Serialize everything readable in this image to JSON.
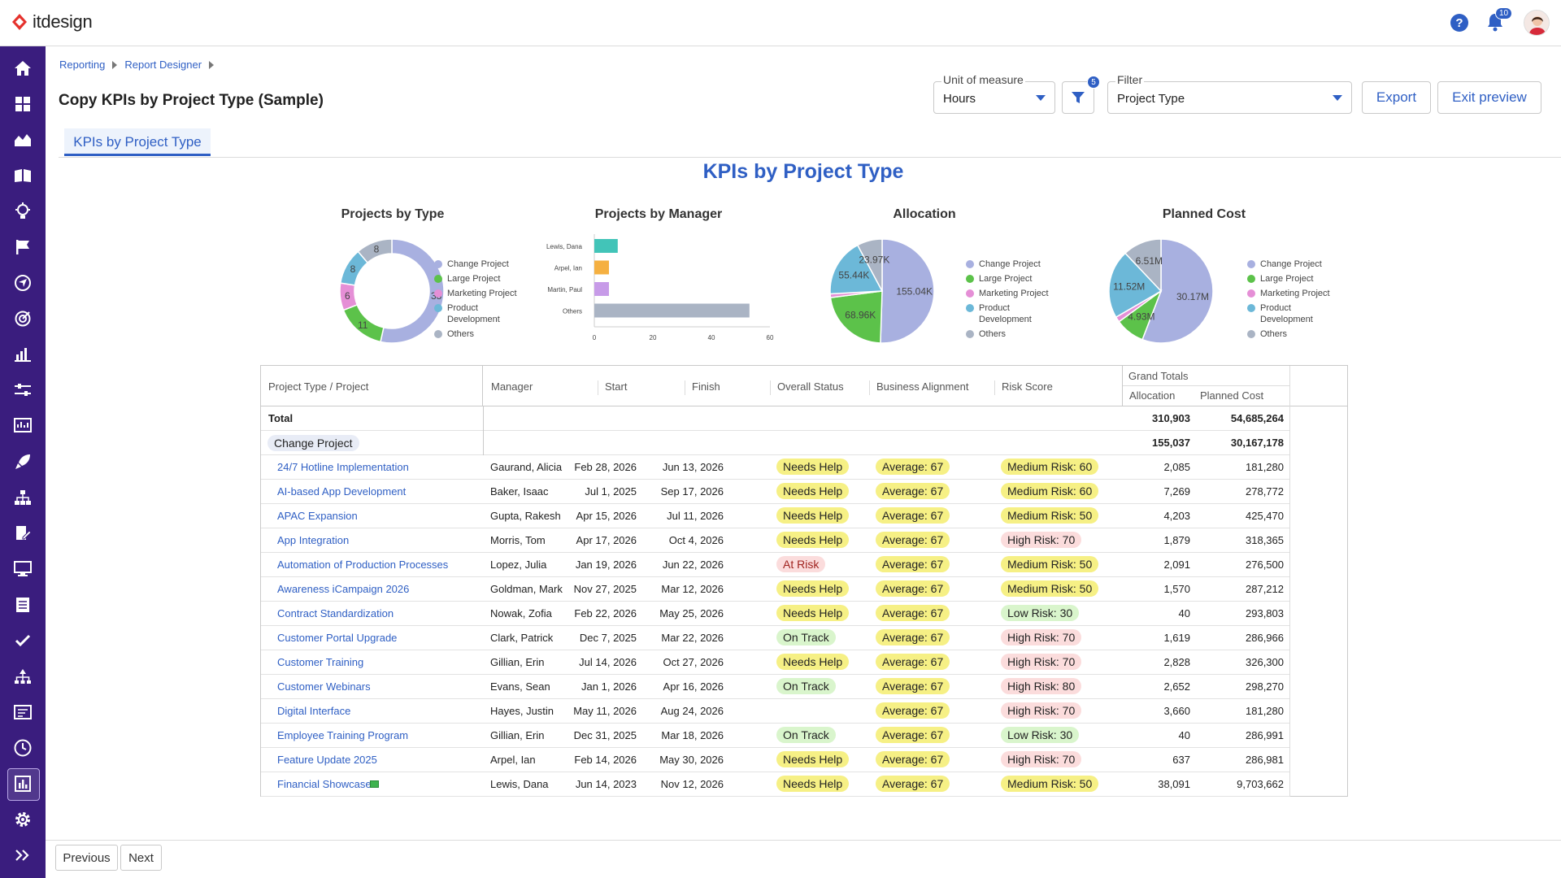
{
  "app": {
    "logo_text": "itdesign",
    "notification_count": "10"
  },
  "breadcrumb": [
    "Reporting",
    "Report Designer"
  ],
  "page_title": "Copy KPIs by Project Type (Sample)",
  "controls": {
    "unit_label": "Unit of measure",
    "unit_value": "Hours",
    "filter_count": "5",
    "filter_label": "Filter",
    "filter_value": "Project Type",
    "export": "Export",
    "exit_preview": "Exit preview"
  },
  "tab": "KPIs by Project Type",
  "report_title": "KPIs by Project Type",
  "legend_items": [
    {
      "label": "Change Project",
      "color": "#a8b0e0"
    },
    {
      "label": "Large Project",
      "color": "#5cc24a"
    },
    {
      "label": "Marketing Project",
      "color": "#e58fd6"
    },
    {
      "label": "Product Development",
      "color": "#6cb8d8"
    },
    {
      "label": "Others",
      "color": "#aab4c4"
    }
  ],
  "chart_data": [
    {
      "type": "pie",
      "title": "Projects by Type",
      "donut": true,
      "categories": [
        "Change Project",
        "Large Project",
        "Marketing Project",
        "Product Development",
        "Others"
      ],
      "values": [
        38,
        11,
        6,
        8,
        8
      ],
      "labels": [
        "38",
        "11",
        "6",
        "8",
        "8"
      ]
    },
    {
      "type": "bar",
      "title": "Projects by Manager",
      "orientation": "horizontal",
      "categories": [
        "Lewis, Dana",
        "Arpel, Ian",
        "Martin, Paul",
        "Others"
      ],
      "values": [
        8,
        5,
        5,
        53
      ],
      "colors": [
        "#42c4b8",
        "#f5b041",
        "#c79be8",
        "#aab4c4"
      ],
      "xticks": [
        "0",
        "20",
        "40",
        "60"
      ],
      "xlim": [
        0,
        60
      ]
    },
    {
      "type": "pie",
      "title": "Allocation",
      "categories": [
        "Change Project",
        "Large Project",
        "Marketing Project",
        "Product Development",
        "Others"
      ],
      "values": [
        155.04,
        68.96,
        3.5,
        55.44,
        23.97
      ],
      "labels": [
        "155.04K",
        "68.96K",
        "",
        "55.44K",
        "23.97K"
      ]
    },
    {
      "type": "pie",
      "title": "Planned Cost",
      "categories": [
        "Change Project",
        "Large Project",
        "Marketing Project",
        "Product Development",
        "Others"
      ],
      "values": [
        30.17,
        4.93,
        0.9,
        11.52,
        6.51
      ],
      "labels": [
        "30.17M",
        "4.93M",
        "",
        "11.52M",
        "6.51M"
      ]
    }
  ],
  "grid": {
    "headers": {
      "project": "Project Type / Project",
      "manager": "Manager",
      "start": "Start",
      "finish": "Finish",
      "status": "Overall Status",
      "alignment": "Business Alignment",
      "risk": "Risk Score",
      "grand_totals": "Grand Totals",
      "allocation": "Allocation",
      "planned_cost": "Planned Cost"
    },
    "total": {
      "label": "Total",
      "allocation": "310,903",
      "planned_cost": "54,685,264"
    },
    "group": {
      "label": "Change Project",
      "allocation": "155,037",
      "planned_cost": "30,167,178"
    },
    "rows": [
      {
        "project": "24/7 Hotline Implementation",
        "manager": "Gaurand, Alicia",
        "start": "Feb 28, 2026",
        "finish": "Jun 13, 2026",
        "status": "Needs Help",
        "status_kind": "help",
        "alignment": "Average: 67",
        "risk": "Medium Risk: 60",
        "risk_kind": "med",
        "allocation": "2,085",
        "planned_cost": "181,280"
      },
      {
        "project": "AI-based App Development",
        "manager": "Baker, Isaac",
        "start": "Jul 1, 2025",
        "finish": "Sep 17, 2026",
        "status": "Needs Help",
        "status_kind": "help",
        "alignment": "Average: 67",
        "risk": "Medium Risk: 60",
        "risk_kind": "med",
        "allocation": "7,269",
        "planned_cost": "278,772"
      },
      {
        "project": "APAC Expansion",
        "manager": "Gupta, Rakesh",
        "start": "Apr 15, 2026",
        "finish": "Jul 11, 2026",
        "status": "Needs Help",
        "status_kind": "help",
        "alignment": "Average: 67",
        "risk": "Medium Risk: 50",
        "risk_kind": "med",
        "allocation": "4,203",
        "planned_cost": "425,470"
      },
      {
        "project": "App Integration",
        "manager": "Morris, Tom",
        "start": "Apr 17, 2026",
        "finish": "Oct 4, 2026",
        "status": "Needs Help",
        "status_kind": "help",
        "alignment": "Average: 67",
        "risk": "High Risk: 70",
        "risk_kind": "high",
        "allocation": "1,879",
        "planned_cost": "318,365"
      },
      {
        "project": "Automation of Production Processes",
        "manager": "Lopez, Julia",
        "start": "Jan 19, 2026",
        "finish": "Jun 22, 2026",
        "status": "At Risk",
        "status_kind": "risk",
        "alignment": "Average: 67",
        "risk": "Medium Risk: 50",
        "risk_kind": "med",
        "allocation": "2,091",
        "planned_cost": "276,500"
      },
      {
        "project": "Awareness iCampaign 2026",
        "manager": "Goldman, Mark",
        "start": "Nov 27, 2025",
        "finish": "Mar 12, 2026",
        "status": "Needs Help",
        "status_kind": "help",
        "alignment": "Average: 67",
        "risk": "Medium Risk: 50",
        "risk_kind": "med",
        "allocation": "1,570",
        "planned_cost": "287,212"
      },
      {
        "project": "Contract Standardization",
        "manager": "Nowak, Zofia",
        "start": "Feb 22, 2026",
        "finish": "May 25, 2026",
        "status": "Needs Help",
        "status_kind": "help",
        "alignment": "Average: 67",
        "risk": "Low Risk: 30",
        "risk_kind": "low",
        "allocation": "40",
        "planned_cost": "293,803"
      },
      {
        "project": "Customer Portal Upgrade",
        "manager": "Clark, Patrick",
        "start": "Dec 7, 2025",
        "finish": "Mar 22, 2026",
        "status": "On Track",
        "status_kind": "track",
        "alignment": "Average: 67",
        "risk": "High Risk: 70",
        "risk_kind": "high",
        "allocation": "1,619",
        "planned_cost": "286,966"
      },
      {
        "project": "Customer Training",
        "manager": "Gillian, Erin",
        "start": "Jul 14, 2026",
        "finish": "Oct 27, 2026",
        "status": "Needs Help",
        "status_kind": "help",
        "alignment": "Average: 67",
        "risk": "High Risk: 70",
        "risk_kind": "high",
        "allocation": "2,828",
        "planned_cost": "326,300"
      },
      {
        "project": "Customer Webinars",
        "manager": "Evans, Sean",
        "start": "Jan 1, 2026",
        "finish": "Apr 16, 2026",
        "status": "On Track",
        "status_kind": "track",
        "alignment": "Average: 67",
        "risk": "High Risk: 80",
        "risk_kind": "high",
        "allocation": "2,652",
        "planned_cost": "298,270"
      },
      {
        "project": "Digital Interface",
        "manager": "Hayes, Justin",
        "start": "May 11, 2026",
        "finish": "Aug 24, 2026",
        "status": "",
        "status_kind": "none",
        "alignment": "Average: 67",
        "risk": "High Risk: 70",
        "risk_kind": "high",
        "allocation": "3,660",
        "planned_cost": "181,280"
      },
      {
        "project": "Employee Training Program",
        "manager": "Gillian, Erin",
        "start": "Dec 31, 2025",
        "finish": "Mar 18, 2026",
        "status": "On Track",
        "status_kind": "track",
        "alignment": "Average: 67",
        "risk": "Low Risk: 30",
        "risk_kind": "low",
        "allocation": "40",
        "planned_cost": "286,991"
      },
      {
        "project": "Feature Update 2025",
        "manager": "Arpel, Ian",
        "start": "Feb 14, 2026",
        "finish": "May 30, 2026",
        "status": "Needs Help",
        "status_kind": "help",
        "alignment": "Average: 67",
        "risk": "High Risk: 70",
        "risk_kind": "high",
        "allocation": "637",
        "planned_cost": "286,981"
      },
      {
        "project": "Financial Showcase",
        "manager": "Lewis, Dana",
        "start": "Jun 14, 2023",
        "finish": "Nov 12, 2026",
        "status": "Needs Help",
        "status_kind": "help",
        "alignment": "Average: 67",
        "risk": "Medium Risk: 50",
        "risk_kind": "med",
        "allocation": "38,091",
        "planned_cost": "9,703,662"
      }
    ]
  },
  "footer": {
    "previous": "Previous",
    "next": "Next"
  }
}
